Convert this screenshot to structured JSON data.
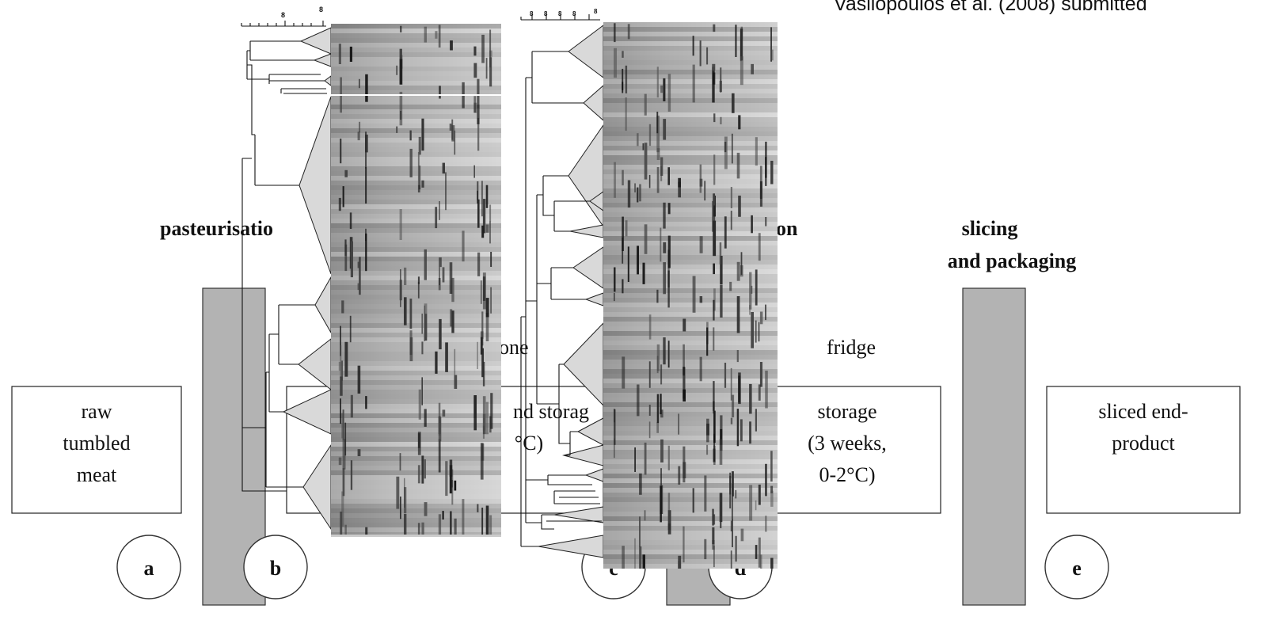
{
  "citation_text": "Vasilopoulos et al. (2008) submitted",
  "process": {
    "steps": [
      {
        "id": "a",
        "lines": [
          "raw",
          "tumbled",
          "meat"
        ]
      },
      {
        "id": "b",
        "lines": [
          "",
          "nd storag",
          "°C)"
        ]
      },
      {
        "id": "d",
        "lines": [
          "storage",
          "(3 weeks,",
          "0-2°C)"
        ]
      },
      {
        "id": "e",
        "lines": [
          "sliced end-",
          "product"
        ]
      }
    ],
    "stage_labels": {
      "pasteurisation": "pasteurisatio",
      "cooling_fragment": "on",
      "slicing_line1": "slicing",
      "slicing_line2": "and packaging",
      "zone_fragment": "one",
      "fridge": "fridge"
    },
    "circle_labels": [
      "a",
      "b",
      "c",
      "d",
      "e"
    ]
  },
  "dendrograms": {
    "left": {
      "scale_ticks": [
        "8",
        "8"
      ]
    },
    "right": {
      "scale_ticks": [
        "8",
        "8",
        "8",
        "8",
        "8"
      ]
    }
  }
}
